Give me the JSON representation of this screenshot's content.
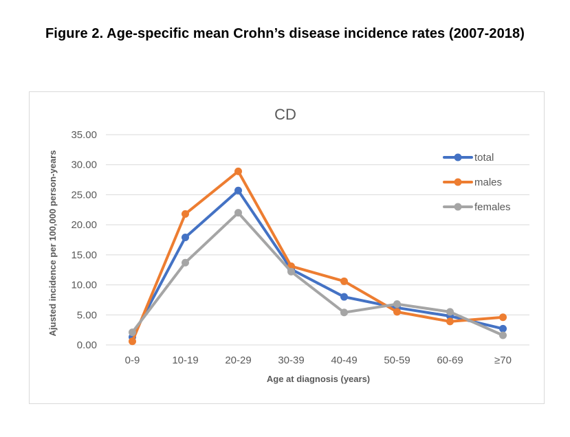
{
  "figure_title": "Figure 2. Age-specific mean Crohn’s disease incidence rates (2007-2018)",
  "chart_data": {
    "type": "line",
    "title": "CD",
    "xlabel": "Age at diagnosis (years)",
    "ylabel": "Ajusted incidence per 100,000 person-years",
    "categories": [
      "0-9",
      "10-19",
      "20-29",
      "30-39",
      "40-49",
      "50-59",
      "60-69",
      "≥70"
    ],
    "ylim": [
      0,
      35
    ],
    "yticks": [
      "0.00",
      "5.00",
      "10.00",
      "15.00",
      "20.00",
      "25.00",
      "30.00",
      "35.00"
    ],
    "grid": "horizontal",
    "legend_position": "top-right",
    "series": [
      {
        "name": "total",
        "color": "#4472c4",
        "values": [
          1.3,
          17.9,
          25.7,
          12.6,
          8.0,
          6.2,
          4.8,
          2.7
        ]
      },
      {
        "name": "males",
        "color": "#ed7d31",
        "values": [
          0.6,
          21.8,
          28.9,
          13.1,
          10.6,
          5.5,
          3.9,
          4.6
        ]
      },
      {
        "name": "females",
        "color": "#a5a5a5",
        "values": [
          2.1,
          13.7,
          22.0,
          12.2,
          5.4,
          6.8,
          5.5,
          1.6
        ]
      }
    ]
  }
}
